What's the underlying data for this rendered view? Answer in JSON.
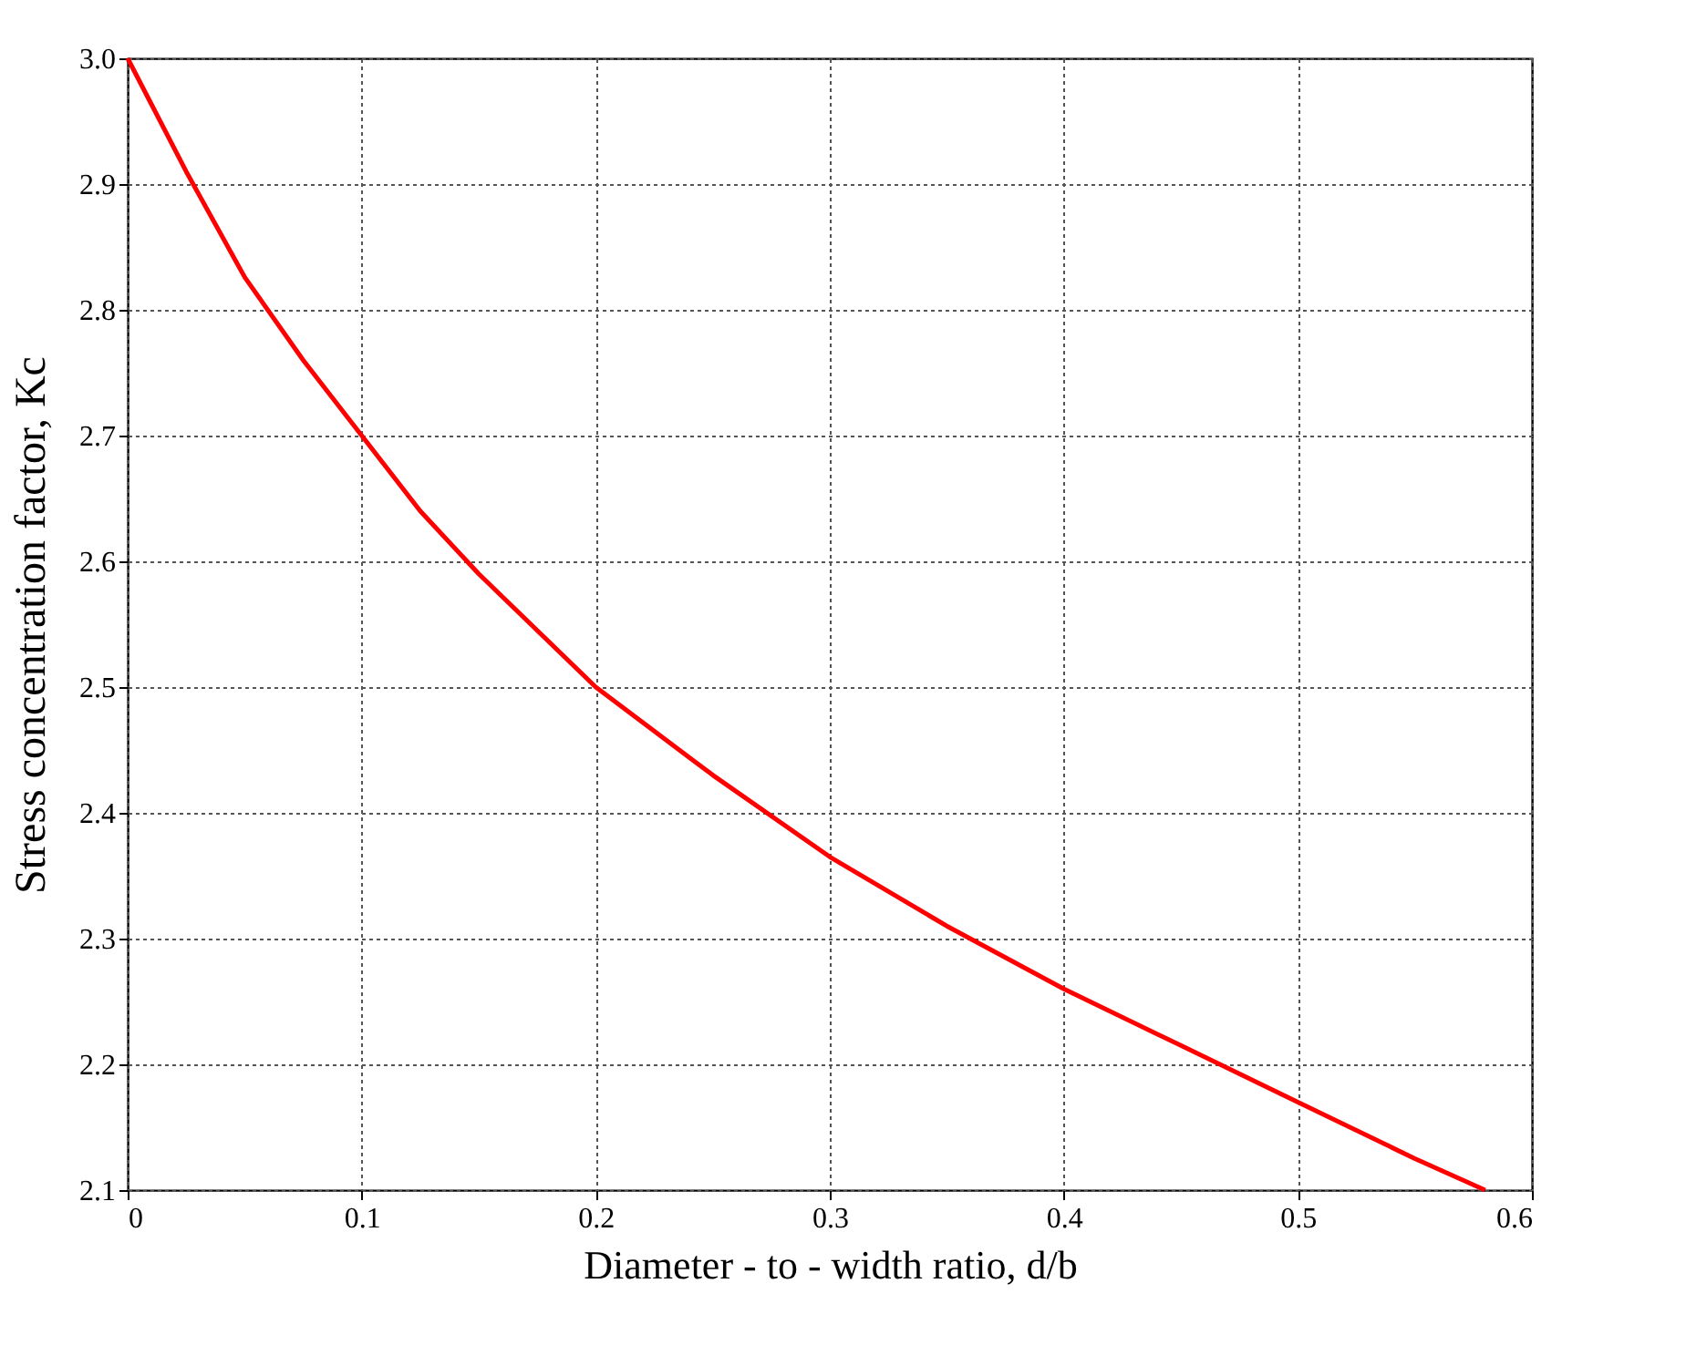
{
  "chart_data": {
    "type": "line",
    "xlabel": "Diameter - to - width ratio, d/b",
    "ylabel": "Stress concentration factor, Kc",
    "series": [
      {
        "color": "#ff0000",
        "x": [
          0,
          0.025,
          0.05,
          0.075,
          0.1,
          0.125,
          0.15,
          0.2,
          0.25,
          0.3,
          0.35,
          0.4,
          0.45,
          0.5,
          0.55,
          0.58
        ],
        "values": [
          3.0,
          2.91,
          2.826,
          2.76,
          2.7,
          2.64,
          2.59,
          2.5,
          2.43,
          2.365,
          2.31,
          2.26,
          2.215,
          2.17,
          2.125,
          2.1
        ]
      }
    ],
    "xlim": [
      0,
      0.6
    ],
    "xticks": [
      0,
      0.1,
      0.2,
      0.3,
      0.4,
      0.5,
      0.6
    ],
    "ylim": [
      2.1,
      3.0
    ],
    "yticks": [
      2.1,
      2.2,
      2.3,
      2.4,
      2.5,
      2.6,
      2.7,
      2.8,
      2.9,
      {
        "value": 3,
        "label": "3.0"
      }
    ],
    "grid": true,
    "line_style": "solid",
    "marker": "none"
  }
}
